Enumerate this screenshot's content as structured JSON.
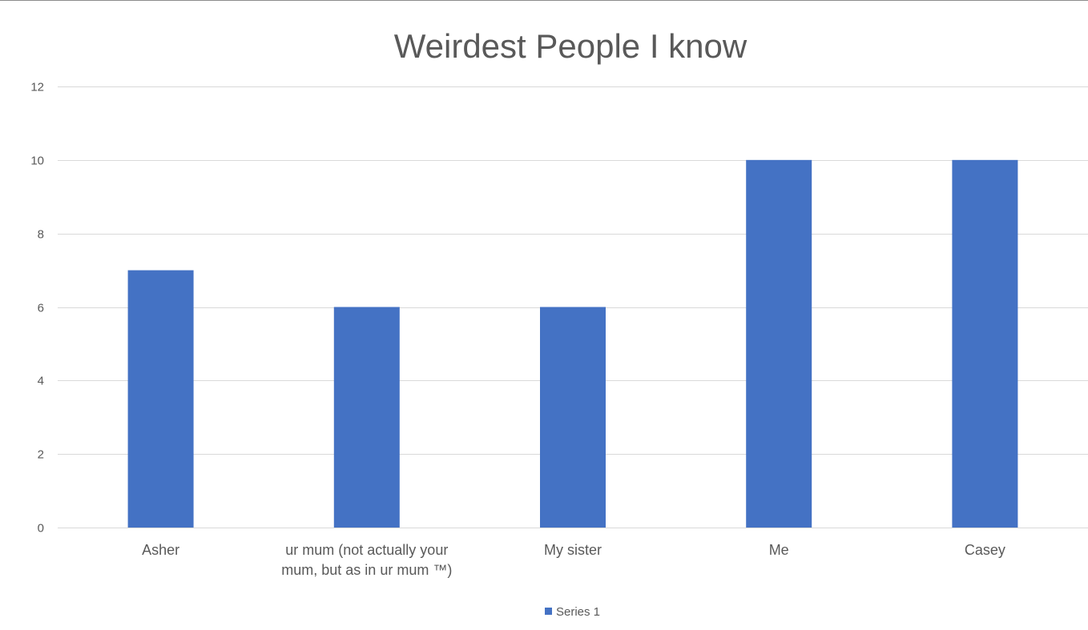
{
  "chart_data": {
    "type": "bar",
    "title": "Weirdest People I know",
    "categories": [
      "Asher",
      "ur mum (not actually your mum, but as in ur mum ™)",
      "My sister",
      "Me",
      "Casey"
    ],
    "category_lines": [
      [
        "Asher"
      ],
      [
        "ur mum (not actually your",
        "mum, but as in ur mum ™)"
      ],
      [
        "My sister"
      ],
      [
        "Me"
      ],
      [
        "Casey"
      ]
    ],
    "series": [
      {
        "name": "Series 1",
        "values": [
          7,
          6,
          6,
          10,
          10
        ],
        "color": "#4472c4"
      }
    ],
    "ylim": [
      0,
      12
    ],
    "yticks": [
      0,
      2,
      4,
      6,
      8,
      10,
      12
    ],
    "ytick_labels": [
      "0",
      "2",
      "4",
      "6",
      "8",
      "10",
      "12"
    ],
    "grid": true,
    "gridline_color": "#d9d9d9",
    "legend": "bottom",
    "xlabel": "",
    "ylabel": ""
  }
}
